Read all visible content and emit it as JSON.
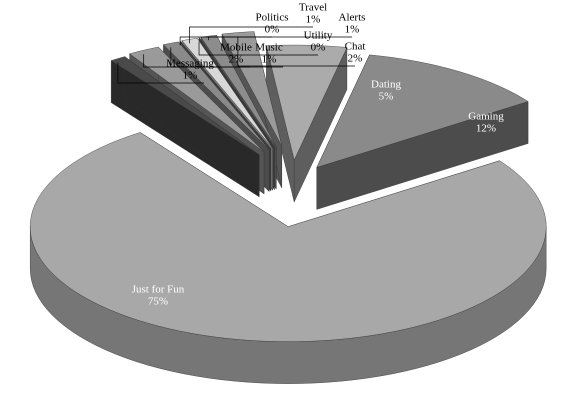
{
  "chart_data": {
    "type": "pie3d",
    "categories": [
      "Messaging",
      "Mobile",
      "Music",
      "Politics",
      "Travel",
      "Utility",
      "Alerts",
      "Chat",
      "Dating",
      "Gaming",
      "Just for Fun"
    ],
    "values": [
      1,
      2,
      1,
      0,
      1,
      0,
      1,
      2,
      5,
      12,
      75
    ],
    "value_labels": [
      "1%",
      "2%",
      "1%",
      "0%",
      "1%",
      "0%",
      "1%",
      "2%",
      "5%",
      "12%",
      "75%"
    ],
    "colors": [
      "#4a4a4a",
      "#9a9a9a",
      "#8a8a8a",
      "#6e6e6e",
      "#d8d8d8",
      "#6a6a6a",
      "#8c8c8c",
      "#9a9a9a",
      "#ababab",
      "#8a8a8a",
      "#a8a8a8"
    ]
  }
}
